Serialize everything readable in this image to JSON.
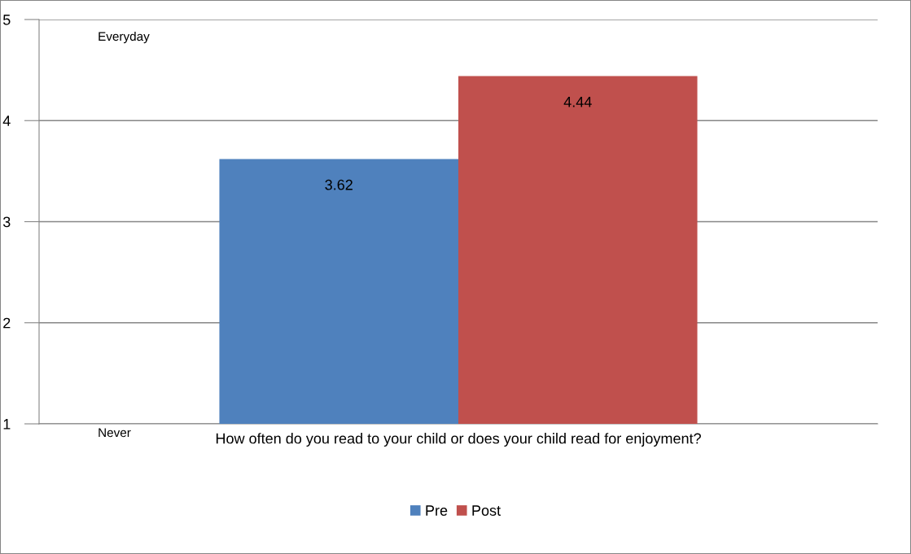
{
  "chart_data": {
    "type": "bar",
    "categories": [
      "How often do you read to your child or does your child read for enjoyment?"
    ],
    "series": [
      {
        "name": "Pre",
        "color": "#4f81bd",
        "values": [
          3.62
        ]
      },
      {
        "name": "Post",
        "color": "#c0504d",
        "values": [
          4.44
        ]
      }
    ],
    "ylim": [
      1,
      5
    ],
    "yticks": [
      1,
      2,
      3,
      4,
      5
    ],
    "grid": "y",
    "legend": "bottom",
    "data_labels": true,
    "annotations": [
      "Everyday",
      "Never"
    ]
  }
}
